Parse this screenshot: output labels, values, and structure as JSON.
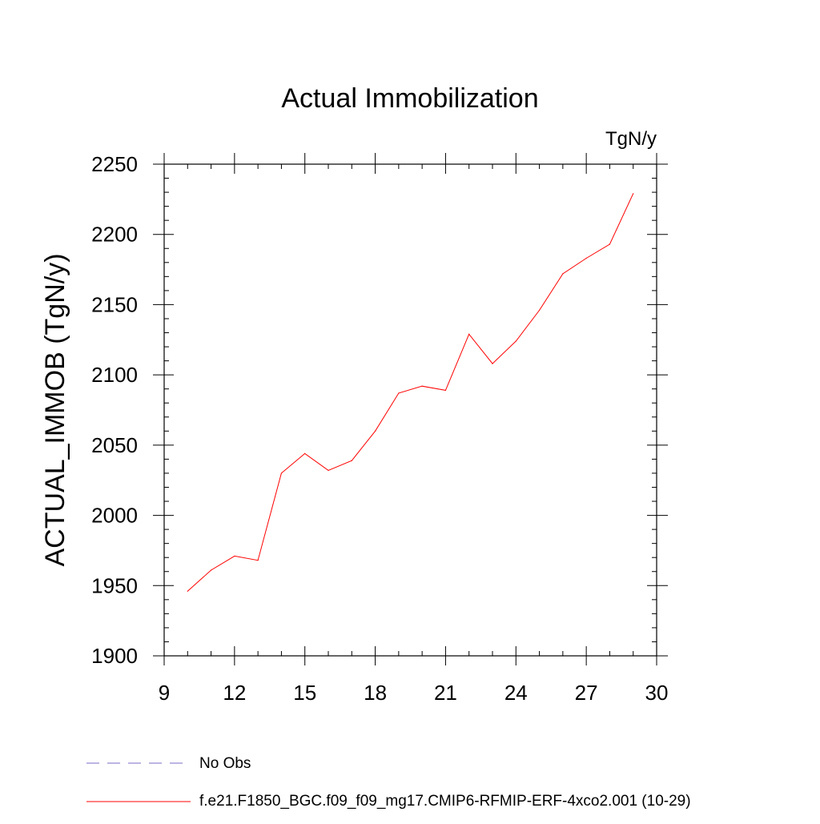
{
  "chart_data": {
    "type": "line",
    "title": "Actual Immobilization",
    "units": "TgN/y",
    "xlabel": "",
    "ylabel": "ACTUAL_IMMOB  (TgN/y)",
    "xlim": [
      9,
      30
    ],
    "ylim": [
      1900,
      2250
    ],
    "x_ticks": [
      "9",
      "12",
      "15",
      "18",
      "21",
      "24",
      "27",
      "30"
    ],
    "y_ticks": [
      "1900",
      "1950",
      "2000",
      "2050",
      "2100",
      "2150",
      "2200",
      "2250"
    ],
    "grid": false,
    "series": [
      {
        "name": "f.e21.F1850_BGC.f09_f09_mg17.CMIP6-RFMIP-ERF-4xco2.001 (10-29)",
        "color": "#ff0000",
        "style": "solid",
        "x": [
          10,
          11,
          12,
          13,
          14,
          15,
          16,
          17,
          18,
          19,
          20,
          21,
          22,
          23,
          24,
          25,
          26,
          27,
          28,
          29
        ],
        "values": [
          1946,
          1961,
          1971,
          1968,
          2030,
          2044,
          2032,
          2039,
          2060,
          2087,
          2092,
          2089,
          2129,
          2108,
          2124,
          2146,
          2172,
          2183,
          2193,
          2229
        ]
      }
    ],
    "legend": [
      {
        "label": "No Obs",
        "color": "#7b68c8",
        "style": "dashed"
      },
      {
        "label": "f.e21.F1850_BGC.f09_f09_mg17.CMIP6-RFMIP-ERF-4xco2.001 (10-29)",
        "color": "#ff0000",
        "style": "solid"
      }
    ]
  }
}
